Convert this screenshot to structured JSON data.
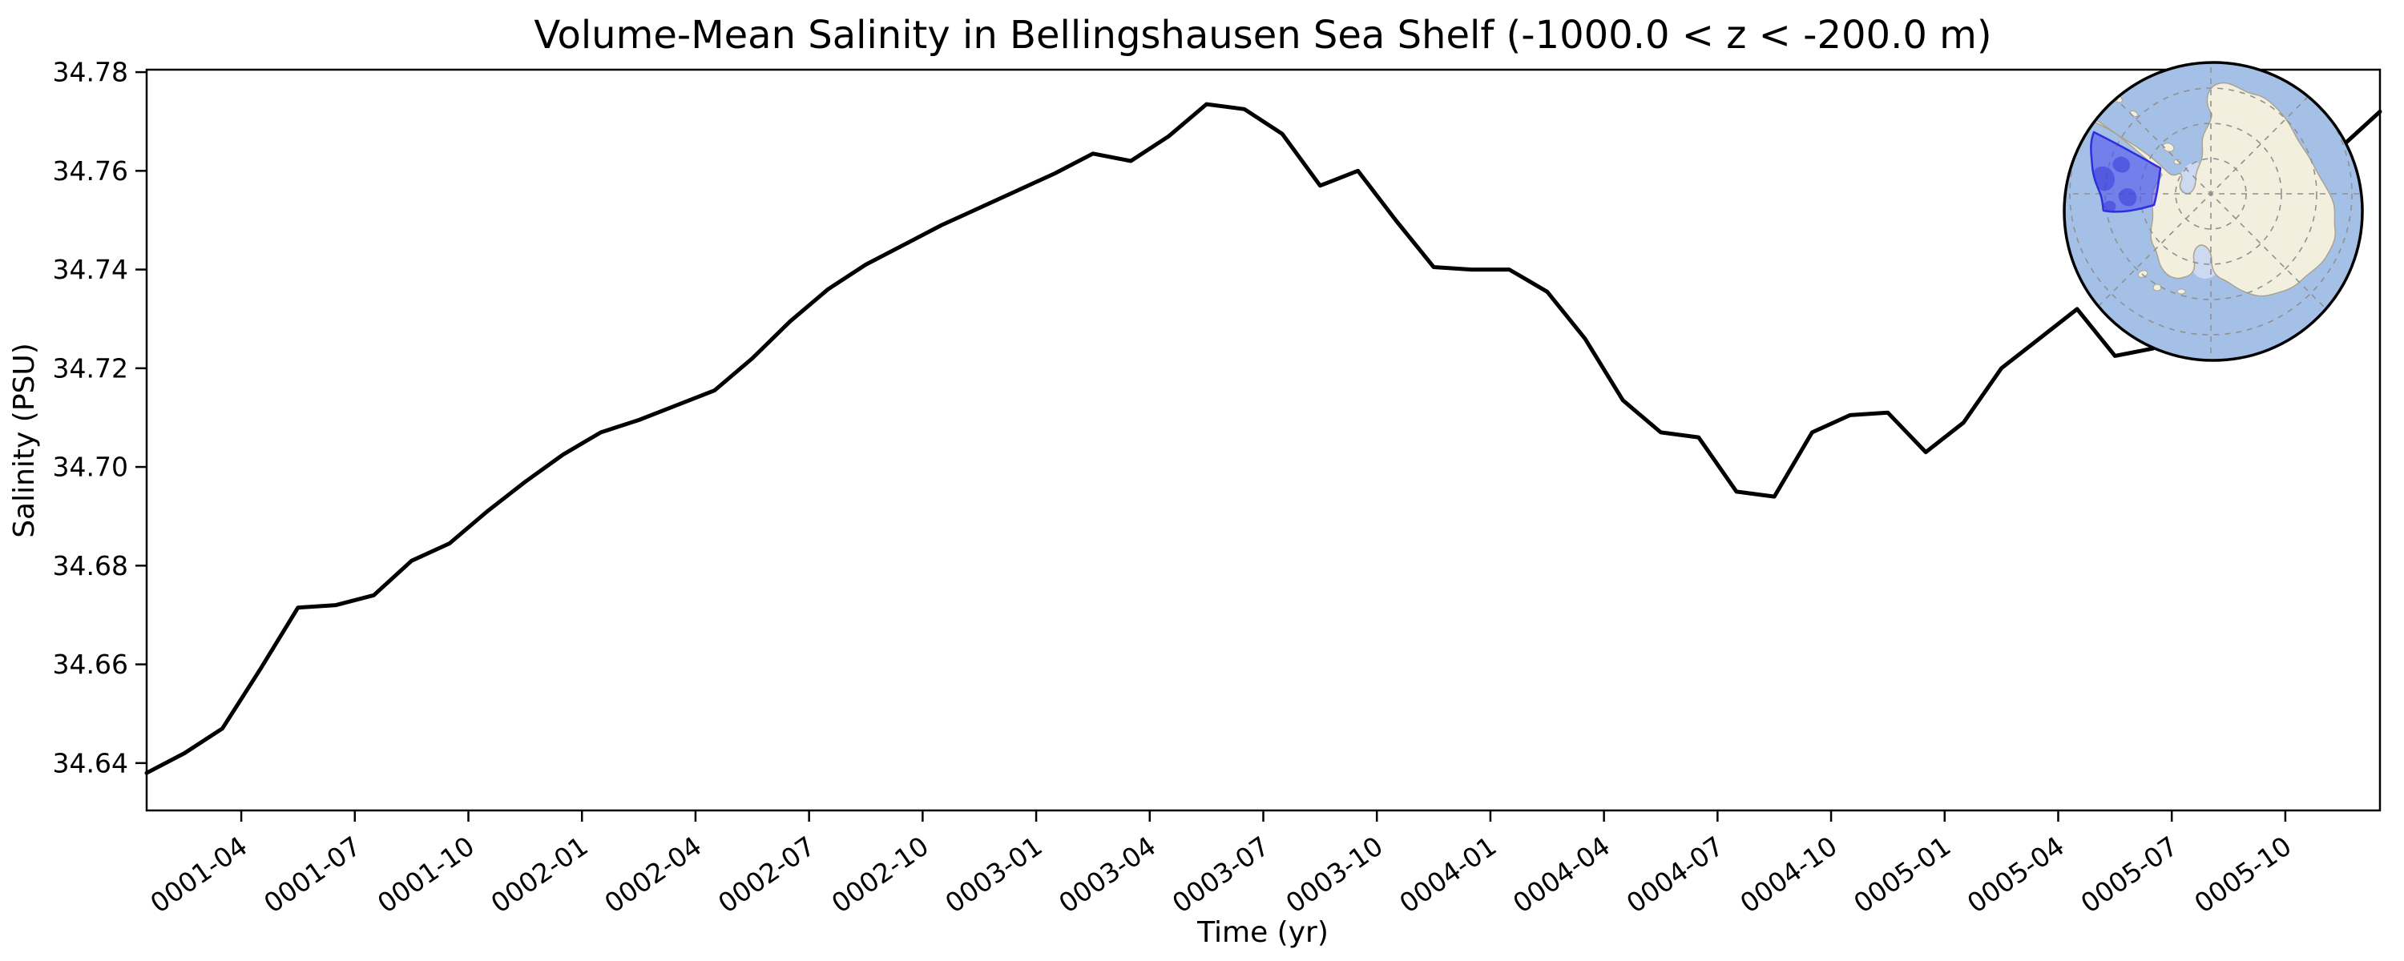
{
  "title": "Volume-Mean Salinity in Bellingshausen Sea Shelf (-1000.0 < z < -200.0 m)",
  "chart_data": {
    "type": "line",
    "title": "Volume-Mean Salinity in Bellingshausen Sea Shelf (-1000.0 < z < -200.0 m)",
    "xlabel": "Time (yr)",
    "ylabel": "Salinity (PSU)",
    "x_months": [
      "0001-01",
      "0001-02",
      "0001-03",
      "0001-04",
      "0001-05",
      "0001-06",
      "0001-07",
      "0001-08",
      "0001-09",
      "0001-10",
      "0001-11",
      "0001-12",
      "0002-01",
      "0002-02",
      "0002-03",
      "0002-04",
      "0002-05",
      "0002-06",
      "0002-07",
      "0002-08",
      "0002-09",
      "0002-10",
      "0002-11",
      "0002-12",
      "0003-01",
      "0003-02",
      "0003-03",
      "0003-04",
      "0003-05",
      "0003-06",
      "0003-07",
      "0003-08",
      "0003-09",
      "0003-10",
      "0003-11",
      "0003-12",
      "0004-01",
      "0004-02",
      "0004-03",
      "0004-04",
      "0004-05",
      "0004-06",
      "0004-07",
      "0004-08",
      "0004-09",
      "0004-10",
      "0004-11",
      "0004-12",
      "0005-01",
      "0005-02",
      "0005-03",
      "0005-04",
      "0005-05",
      "0005-06",
      "0005-07",
      "0005-08",
      "0005-09",
      "0005-10",
      "0005-11",
      "0005-12"
    ],
    "values": [
      34.638,
      34.642,
      34.647,
      34.659,
      34.6715,
      34.672,
      34.674,
      34.681,
      34.6845,
      34.691,
      34.697,
      34.7025,
      34.707,
      34.7095,
      34.7125,
      34.7155,
      34.722,
      34.7295,
      34.736,
      34.741,
      34.745,
      34.749,
      34.7525,
      34.756,
      34.7595,
      34.7635,
      34.762,
      34.767,
      34.7735,
      34.7725,
      34.7675,
      34.757,
      34.76,
      34.75,
      34.7405,
      34.74,
      34.74,
      34.7355,
      34.726,
      34.7135,
      34.707,
      34.706,
      34.695,
      34.694,
      34.707,
      34.7105,
      34.711,
      34.703,
      34.709,
      34.72,
      34.726,
      34.732,
      34.7225,
      34.724,
      34.731,
      34.74,
      34.749,
      34.757,
      34.765,
      34.772
    ],
    "xtick_labels": [
      "0001-04",
      "0001-07",
      "0001-10",
      "0002-01",
      "0002-04",
      "0002-07",
      "0002-10",
      "0003-01",
      "0003-04",
      "0003-07",
      "0003-10",
      "0004-01",
      "0004-04",
      "0004-07",
      "0004-10",
      "0005-01",
      "0005-04",
      "0005-07",
      "0005-10"
    ],
    "ytick_labels": [
      "34.64",
      "34.66",
      "34.68",
      "34.70",
      "34.72",
      "34.74",
      "34.76",
      "34.78"
    ],
    "ytick_values": [
      34.64,
      34.66,
      34.68,
      34.7,
      34.72,
      34.74,
      34.76,
      34.78
    ],
    "ylim": [
      34.6304,
      34.7805
    ],
    "grid": false,
    "legend": null,
    "line_color": "#000000",
    "line_width": 5
  },
  "inset_map": {
    "description": "South polar stereographic map of Antarctica with the Bellingshausen Sea shelf region highlighted",
    "ocean_color": "#a5c0e7",
    "land_color": "#f2efdf",
    "coast_color": "#aaa48f",
    "ice_shelf_color": "#cdd9f0",
    "graticule_color": "#909090",
    "border_color": "#000000",
    "region_fill_color": "#4a4aee",
    "region_border_color": "#2e2ee0",
    "region_patch_color": "#2c2cd4"
  }
}
